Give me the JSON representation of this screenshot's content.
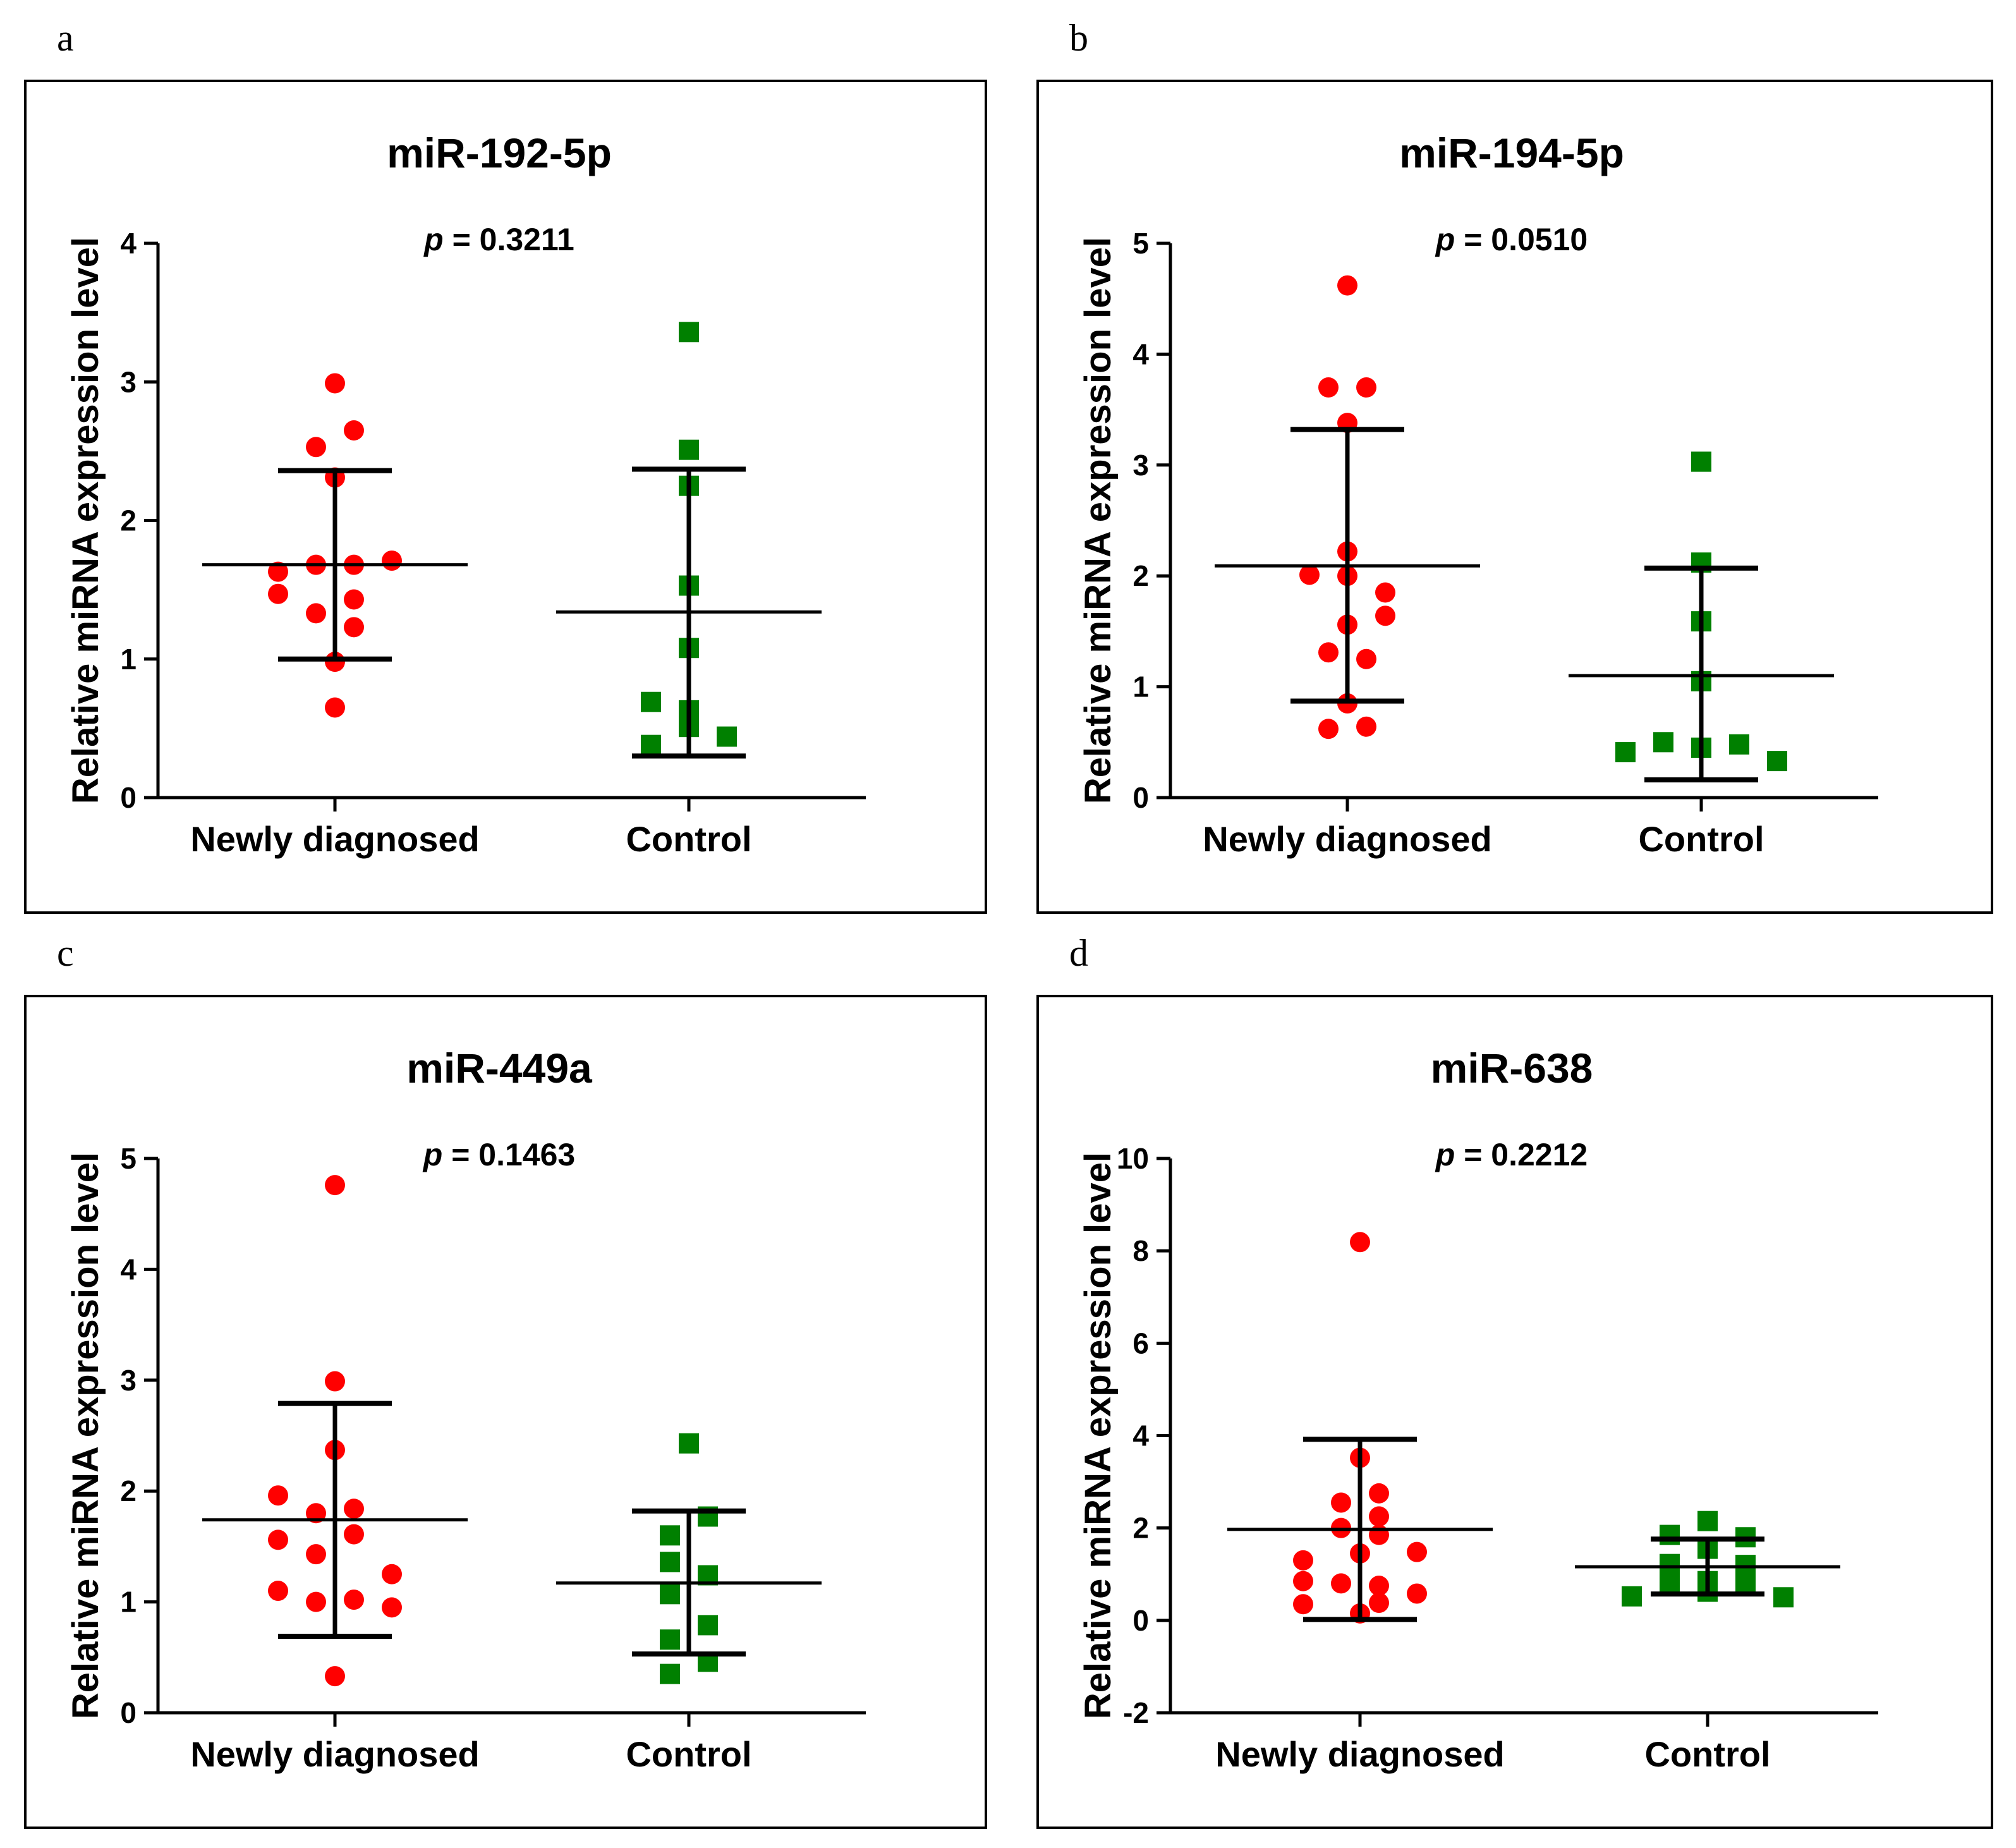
{
  "colors": {
    "newly": "#ff0000",
    "control": "#008000",
    "ink": "#000000"
  },
  "chart_data": [
    {
      "panel": "a",
      "type": "scatter",
      "title": "miR-192-5p",
      "p_prefix": "p",
      "p_value": "= 0.3211",
      "ylabel": "Relative miRNA expression level",
      "ylim": [
        0,
        4
      ],
      "yticks": [
        0,
        1,
        2,
        3,
        4
      ],
      "categories": [
        "Newly diagnosed",
        "Control"
      ],
      "series": [
        {
          "name": "Newly diagnosed",
          "marker": "circle",
          "mean": 1.68,
          "sd_low": 1.0,
          "sd_high": 2.36,
          "points": [
            [
              0,
              2.99
            ],
            [
              -0.2,
              2.53
            ],
            [
              0.2,
              2.65
            ],
            [
              0,
              2.31
            ],
            [
              -0.6,
              1.63
            ],
            [
              -0.2,
              1.68
            ],
            [
              0.2,
              1.68
            ],
            [
              0.6,
              1.71
            ],
            [
              -0.6,
              1.47
            ],
            [
              0.2,
              1.43
            ],
            [
              -0.2,
              1.33
            ],
            [
              0.2,
              1.23
            ],
            [
              0,
              0.98
            ],
            [
              0,
              0.65
            ]
          ]
        },
        {
          "name": "Control",
          "marker": "square",
          "mean": 1.34,
          "sd_low": 0.3,
          "sd_high": 2.37,
          "points": [
            [
              0,
              3.36
            ],
            [
              0,
              2.51
            ],
            [
              0,
              2.25
            ],
            [
              0,
              1.53
            ],
            [
              0,
              1.08
            ],
            [
              -0.4,
              0.69
            ],
            [
              0,
              0.63
            ],
            [
              0,
              0.51
            ],
            [
              0.4,
              0.44
            ],
            [
              -0.4,
              0.38
            ]
          ]
        }
      ]
    },
    {
      "panel": "b",
      "type": "scatter",
      "title": "miR-194-5p",
      "p_prefix": "p",
      "p_value": "= 0.0510",
      "ylabel": "Relative miRNA expression level",
      "ylim": [
        0,
        5
      ],
      "yticks": [
        0,
        1,
        2,
        3,
        4,
        5
      ],
      "categories": [
        "Newly diagnosed",
        "Control"
      ],
      "series": [
        {
          "name": "Newly diagnosed",
          "marker": "circle",
          "mean": 2.09,
          "sd_low": 0.87,
          "sd_high": 3.32,
          "points": [
            [
              0,
              4.62
            ],
            [
              -0.2,
              3.7
            ],
            [
              0.2,
              3.7
            ],
            [
              0,
              3.38
            ],
            [
              0,
              2.22
            ],
            [
              -0.4,
              2.01
            ],
            [
              0,
              2.0
            ],
            [
              0.4,
              1.85
            ],
            [
              0.4,
              1.64
            ],
            [
              0,
              1.56
            ],
            [
              -0.2,
              1.31
            ],
            [
              0.2,
              1.25
            ],
            [
              0,
              0.85
            ],
            [
              -0.2,
              0.62
            ],
            [
              0.2,
              0.64
            ]
          ]
        },
        {
          "name": "Control",
          "marker": "square",
          "mean": 1.1,
          "sd_low": 0.16,
          "sd_high": 2.07,
          "points": [
            [
              0,
              3.03
            ],
            [
              0,
              2.12
            ],
            [
              0,
              1.59
            ],
            [
              0,
              1.05
            ],
            [
              -0.4,
              0.5
            ],
            [
              0.4,
              0.48
            ],
            [
              0,
              0.45
            ],
            [
              -0.8,
              0.41
            ],
            [
              0.8,
              0.33
            ]
          ]
        }
      ]
    },
    {
      "panel": "c",
      "type": "scatter",
      "title": "miR-449a",
      "p_prefix": "p",
      "p_value": "= 0.1463",
      "ylabel": "Relative miRNA expression level",
      "ylim": [
        0,
        5
      ],
      "yticks": [
        0,
        1,
        2,
        3,
        4,
        5
      ],
      "categories": [
        "Newly diagnosed",
        "Control"
      ],
      "series": [
        {
          "name": "Newly diagnosed",
          "marker": "circle",
          "mean": 1.74,
          "sd_low": 0.69,
          "sd_high": 2.79,
          "points": [
            [
              0,
              4.76
            ],
            [
              0,
              2.99
            ],
            [
              0,
              2.37
            ],
            [
              -0.6,
              1.96
            ],
            [
              -0.2,
              1.8
            ],
            [
              0.2,
              1.84
            ],
            [
              -0.6,
              1.56
            ],
            [
              0.2,
              1.61
            ],
            [
              -0.2,
              1.43
            ],
            [
              0.6,
              1.25
            ],
            [
              -0.6,
              1.1
            ],
            [
              -0.2,
              1.0
            ],
            [
              0.2,
              1.02
            ],
            [
              0.6,
              0.95
            ],
            [
              0,
              0.33
            ]
          ]
        },
        {
          "name": "Control",
          "marker": "square",
          "mean": 1.17,
          "sd_low": 0.53,
          "sd_high": 1.82,
          "points": [
            [
              0,
              2.43
            ],
            [
              0.2,
              1.77
            ],
            [
              -0.2,
              1.6
            ],
            [
              -0.2,
              1.36
            ],
            [
              0.2,
              1.24
            ],
            [
              -0.2,
              1.07
            ],
            [
              0.2,
              0.79
            ],
            [
              -0.2,
              0.66
            ],
            [
              0.2,
              0.46
            ],
            [
              -0.2,
              0.35
            ]
          ]
        }
      ]
    },
    {
      "panel": "d",
      "type": "scatter",
      "title": "miR-638",
      "p_prefix": "p",
      "p_value": "= 0.2212",
      "ylabel": "Relative miRNA expression level",
      "ylim": [
        -2,
        10
      ],
      "yticks": [
        -2,
        0,
        2,
        4,
        6,
        8,
        10
      ],
      "categories": [
        "Newly diagnosed",
        "Control"
      ],
      "series": [
        {
          "name": "Newly diagnosed",
          "marker": "circle",
          "mean": 1.97,
          "sd_low": 0.02,
          "sd_high": 3.92,
          "points": [
            [
              0,
              8.19
            ],
            [
              0,
              3.52
            ],
            [
              -0.2,
              2.55
            ],
            [
              0.2,
              2.75
            ],
            [
              0.2,
              2.25
            ],
            [
              -0.2,
              2.0
            ],
            [
              0.2,
              1.85
            ],
            [
              -0.6,
              1.3
            ],
            [
              0,
              1.45
            ],
            [
              0.6,
              1.48
            ],
            [
              -0.6,
              0.85
            ],
            [
              -0.2,
              0.8
            ],
            [
              0.2,
              0.75
            ],
            [
              0.6,
              0.58
            ],
            [
              -0.6,
              0.35
            ],
            [
              0.2,
              0.38
            ],
            [
              0,
              0.15
            ]
          ]
        },
        {
          "name": "Control",
          "marker": "square",
          "mean": 1.16,
          "sd_low": 0.57,
          "sd_high": 1.76,
          "points": [
            [
              0,
              2.15
            ],
            [
              -0.4,
              1.85
            ],
            [
              0.4,
              1.8
            ],
            [
              0,
              1.55
            ],
            [
              -0.4,
              1.22
            ],
            [
              0.4,
              1.2
            ],
            [
              -0.4,
              0.82
            ],
            [
              0,
              0.85
            ],
            [
              0.4,
              0.8
            ],
            [
              0,
              0.62
            ],
            [
              -0.8,
              0.52
            ],
            [
              0.8,
              0.5
            ]
          ]
        }
      ]
    }
  ]
}
